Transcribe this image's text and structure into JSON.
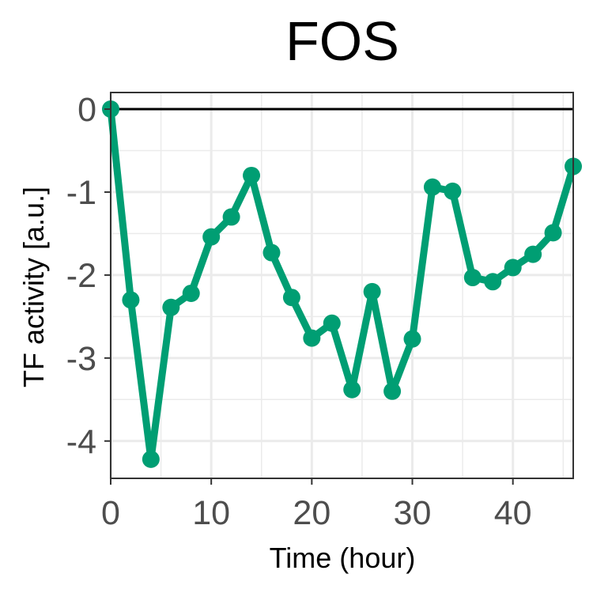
{
  "chart_data": {
    "type": "line",
    "title": "FOS",
    "xlabel": "Time (hour)",
    "ylabel": "TF activity [a.u.]",
    "xlim": [
      0,
      46
    ],
    "ylim": [
      -4.45,
      0.2
    ],
    "x_ticks": [
      0,
      10,
      20,
      30,
      40
    ],
    "x_tick_labels": [
      "0",
      "10",
      "20",
      "30",
      "40"
    ],
    "y_ticks": [
      0,
      -1,
      -2,
      -3,
      -4
    ],
    "y_tick_labels": [
      "0",
      "-1",
      "-2",
      "-3",
      "-4"
    ],
    "x_minor_ticks": [
      5,
      15,
      25,
      35,
      45
    ],
    "y_minor_ticks": [
      -0.5,
      -1.5,
      -2.5,
      -3.5
    ],
    "reference_line_y": 0,
    "grid": true,
    "series": [
      {
        "color": "#009E73",
        "x": [
          0,
          2,
          4,
          6,
          8,
          10,
          12,
          14,
          16,
          18,
          20,
          22,
          24,
          26,
          28,
          30,
          32,
          34,
          36,
          38,
          40,
          42,
          44,
          46
        ],
        "y": [
          0,
          -2.3,
          -4.22,
          -2.39,
          -2.22,
          -1.54,
          -1.3,
          -0.8,
          -1.73,
          -2.27,
          -2.76,
          -2.58,
          -3.38,
          -2.2,
          -3.4,
          -2.77,
          -0.94,
          -0.99,
          -2.03,
          -2.08,
          -1.91,
          -1.75,
          -1.49,
          -0.69
        ]
      }
    ]
  }
}
